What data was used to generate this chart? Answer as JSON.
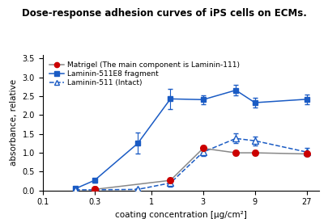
{
  "title": "Dose-response adhesion curves of iPS cells on ECMs.",
  "title_bg": "#FFFF00",
  "title_color": "#000000",
  "xlabel": "coating concentration [μg/cm²]",
  "ylabel": "absorbance, relative",
  "matrigel_x": [
    0.3,
    0.3,
    1.5,
    3.0,
    6.0,
    9.0,
    27.0
  ],
  "matrigel_y": [
    0.03,
    0.03,
    0.27,
    1.12,
    1.0,
    1.0,
    0.97
  ],
  "matrigel_yerr": [
    0.03,
    0.03,
    0.06,
    0.08,
    0.07,
    0.07,
    0.06
  ],
  "matrigel_color": "#cc0000",
  "matrigel_line_color": "#888888",
  "lam511e8_x": [
    0.2,
    0.3,
    0.75,
    1.5,
    3.0,
    6.0,
    9.0,
    27.0
  ],
  "lam511e8_y": [
    0.05,
    0.27,
    1.25,
    2.43,
    2.41,
    2.66,
    2.33,
    2.42
  ],
  "lam511e8_yerr": [
    0.03,
    0.05,
    0.28,
    0.27,
    0.12,
    0.14,
    0.12,
    0.13
  ],
  "lam511e8_color": "#1a5bc4",
  "lam511_x": [
    0.2,
    0.3,
    0.75,
    1.5,
    3.0,
    6.0,
    9.0,
    27.0
  ],
  "lam511_y": [
    0.02,
    0.02,
    0.03,
    0.2,
    1.02,
    1.38,
    1.32,
    1.02
  ],
  "lam511_yerr": [
    0.02,
    0.02,
    0.04,
    0.1,
    0.1,
    0.13,
    0.12,
    0.1
  ],
  "lam511_color": "#1a5bc4",
  "xlim": [
    0.1,
    35
  ],
  "ylim": [
    0.0,
    3.6
  ],
  "yticks": [
    0.0,
    0.5,
    1.0,
    1.5,
    2.0,
    2.5,
    3.0,
    3.5
  ],
  "xticks": [
    0.1,
    0.3,
    1,
    3,
    9,
    27
  ],
  "xticklabels": [
    "0.1",
    "0.3",
    "1",
    "3",
    "9",
    "27"
  ],
  "fig_width": 4.06,
  "fig_height": 2.71,
  "dpi": 100
}
